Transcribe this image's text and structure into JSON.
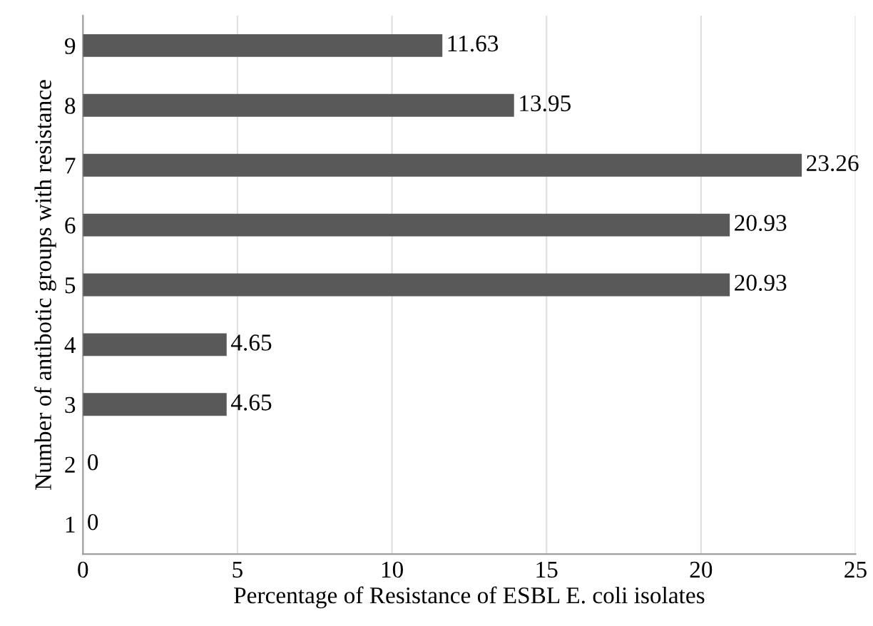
{
  "chart_data": {
    "type": "bar",
    "orientation": "horizontal",
    "xlabel": "Percentage of Resistance of ESBL E. coli isolates",
    "ylabel": "Number of antibotic groups with resistance",
    "categories": [
      "9",
      "8",
      "7",
      "6",
      "5",
      "4",
      "3",
      "2",
      "1"
    ],
    "values": [
      11.63,
      13.95,
      23.26,
      20.93,
      20.93,
      4.65,
      4.65,
      0,
      0
    ],
    "color": "#595959",
    "xlim": [
      0,
      25
    ],
    "xticks": [
      0,
      5,
      10,
      15,
      20,
      25
    ],
    "grid": "x",
    "data_labels": true
  }
}
